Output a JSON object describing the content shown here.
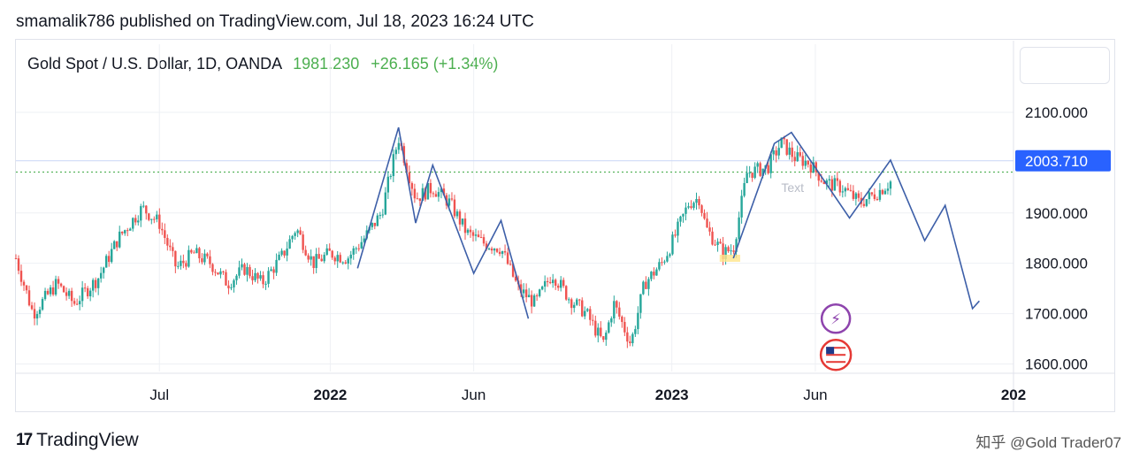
{
  "header": {
    "publisher": "smamalik786 published on TradingView.com, Jul 18, 2023 16:24 UTC"
  },
  "symbol": {
    "name": "Gold Spot / U.S. Dollar, 1D, OANDA",
    "price": "1981.230",
    "change": "+26.165 (+1.34%)"
  },
  "footer": {
    "logo_text": "TradingView",
    "logo_mark": "17",
    "watermark": "知乎 @Gold Trader07"
  },
  "colors": {
    "up": "#26a69a",
    "down": "#ef5350",
    "drawing": "#3d5fa8",
    "current_price_bg": "#2962ff"
  },
  "chart_data": {
    "type": "candlestick",
    "y_ticks": [
      "1600.000",
      "1700.000",
      "1800.000",
      "1900.000",
      "2100.000"
    ],
    "y_tick_values": [
      1600,
      1700,
      1800,
      1900,
      2100
    ],
    "x_ticks": [
      "Jul",
      "2022",
      "Jun",
      "2023",
      "Jun",
      "202"
    ],
    "x_tick_bold": [
      false,
      true,
      false,
      true,
      false,
      true
    ],
    "x_tick_positions": [
      2021.5,
      2022.0,
      2022.42,
      2023.0,
      2023.42,
      2024.0
    ],
    "x_range": [
      2021.08,
      2024.0
    ],
    "ylim": [
      1585,
      2165
    ],
    "current_price_label": "2003.710",
    "current_price": 2003.71,
    "dotted_price": 1981.23,
    "price_path": [
      [
        2021.08,
        1810
      ],
      [
        2021.13,
        1700
      ],
      [
        2021.2,
        1760
      ],
      [
        2021.25,
        1720
      ],
      [
        2021.32,
        1770
      ],
      [
        2021.38,
        1850
      ],
      [
        2021.45,
        1910
      ],
      [
        2021.5,
        1880
      ],
      [
        2021.55,
        1790
      ],
      [
        2021.6,
        1820
      ],
      [
        2021.65,
        1800
      ],
      [
        2021.7,
        1760
      ],
      [
        2021.75,
        1790
      ],
      [
        2021.8,
        1760
      ],
      [
        2021.86,
        1815
      ],
      [
        2021.9,
        1870
      ],
      [
        2021.95,
        1800
      ],
      [
        2022.0,
        1820
      ],
      [
        2022.05,
        1810
      ],
      [
        2022.1,
        1850
      ],
      [
        2022.15,
        1900
      ],
      [
        2022.2,
        2050
      ],
      [
        2022.25,
        1930
      ],
      [
        2022.3,
        1950
      ],
      [
        2022.35,
        1920
      ],
      [
        2022.4,
        1860
      ],
      [
        2022.45,
        1840
      ],
      [
        2022.5,
        1830
      ],
      [
        2022.55,
        1750
      ],
      [
        2022.6,
        1720
      ],
      [
        2022.65,
        1780
      ],
      [
        2022.7,
        1730
      ],
      [
        2022.75,
        1700
      ],
      [
        2022.8,
        1640
      ],
      [
        2022.83,
        1720
      ],
      [
        2022.88,
        1640
      ],
      [
        2022.92,
        1760
      ],
      [
        2022.97,
        1800
      ],
      [
        2023.0,
        1840
      ],
      [
        2023.05,
        1920
      ],
      [
        2023.08,
        1930
      ],
      [
        2023.1,
        1870
      ],
      [
        2023.15,
        1820
      ],
      [
        2023.18,
        1830
      ],
      [
        2023.22,
        1980
      ],
      [
        2023.28,
        1990
      ],
      [
        2023.32,
        2040
      ],
      [
        2023.36,
        2010
      ],
      [
        2023.4,
        2000
      ],
      [
        2023.45,
        1960
      ],
      [
        2023.5,
        1950
      ],
      [
        2023.55,
        1920
      ],
      [
        2023.6,
        1940
      ],
      [
        2023.64,
        1962
      ]
    ],
    "drawing_paths": [
      [
        [
          2022.08,
          1790
        ],
        [
          2022.2,
          2070
        ],
        [
          2022.25,
          1880
        ],
        [
          2022.3,
          1995
        ],
        [
          2022.42,
          1780
        ],
        [
          2022.5,
          1885
        ],
        [
          2022.58,
          1690
        ]
      ],
      [
        [
          2023.18,
          1810
        ],
        [
          2023.3,
          2038
        ],
        [
          2023.35,
          2060
        ],
        [
          2023.52,
          1890
        ],
        [
          2023.64,
          2005
        ],
        [
          2023.74,
          1845
        ],
        [
          2023.8,
          1915
        ],
        [
          2023.88,
          1710
        ],
        [
          2023.9,
          1725
        ]
      ]
    ],
    "highlight_box": {
      "x0": 2023.14,
      "x1": 2023.2,
      "y": 1810
    },
    "faded_text": "Text",
    "faded_text_at": [
      2023.32,
      1942
    ],
    "event_icons": [
      {
        "name": "lightning-icon",
        "glyph": "⚡",
        "at": [
          2023.48,
          1690
        ]
      },
      {
        "name": "us-flag-icon",
        "glyph": "",
        "at": [
          2023.48,
          1618
        ]
      }
    ]
  }
}
